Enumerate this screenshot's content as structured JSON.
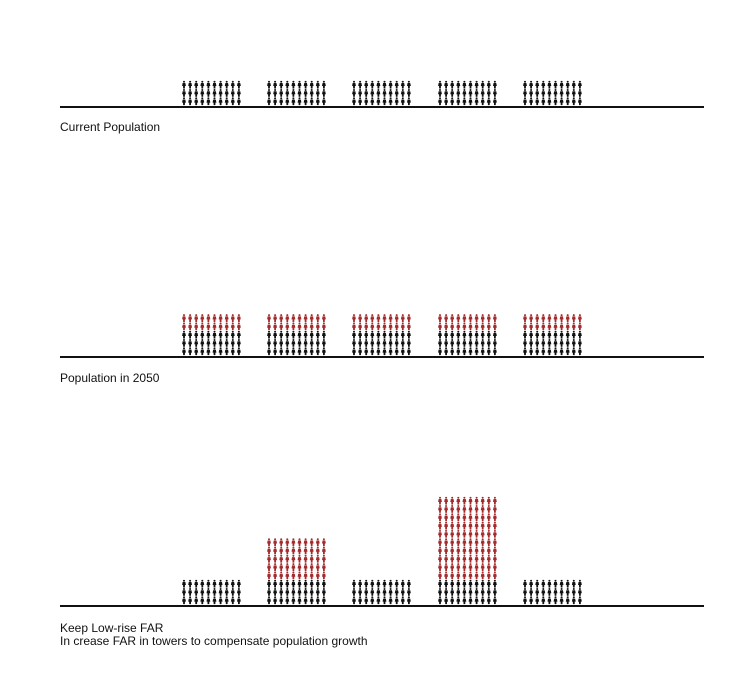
{
  "colors": {
    "existing": "#111111",
    "growth": "#a32b2c",
    "ground": "#111111"
  },
  "icon": "person-icon",
  "panels": [
    {
      "id": "current",
      "captions": [
        "Current Population"
      ],
      "blocks": [
        {
          "black_rows": 3,
          "red_rows": 0
        },
        {
          "black_rows": 3,
          "red_rows": 0
        },
        {
          "black_rows": 3,
          "red_rows": 0
        },
        {
          "black_rows": 3,
          "red_rows": 0
        },
        {
          "black_rows": 3,
          "red_rows": 0
        }
      ]
    },
    {
      "id": "2050",
      "captions": [
        "Population in 2050"
      ],
      "blocks": [
        {
          "black_rows": 3,
          "red_rows": 2
        },
        {
          "black_rows": 3,
          "red_rows": 2
        },
        {
          "black_rows": 3,
          "red_rows": 2
        },
        {
          "black_rows": 3,
          "red_rows": 2
        },
        {
          "black_rows": 3,
          "red_rows": 2
        }
      ]
    },
    {
      "id": "towers",
      "captions": [
        "Keep Low-rise FAR",
        "In crease FAR in towers to compensate population growth"
      ],
      "blocks": [
        {
          "black_rows": 3,
          "red_rows": 0
        },
        {
          "black_rows": 3,
          "red_rows": 5
        },
        {
          "black_rows": 3,
          "red_rows": 0
        },
        {
          "black_rows": 3,
          "red_rows": 10
        },
        {
          "black_rows": 3,
          "red_rows": 0
        }
      ]
    }
  ]
}
